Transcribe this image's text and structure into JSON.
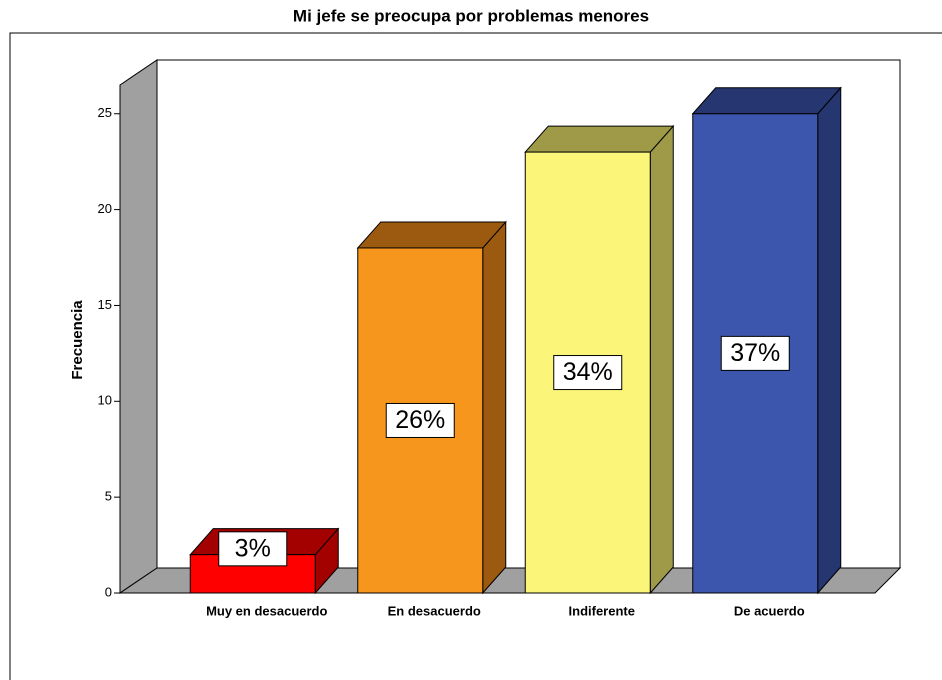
{
  "chart_data": {
    "type": "bar3d",
    "title": "Mi jefe se preocupa por problemas menores",
    "y_label": "Frecuencia",
    "categories": [
      "Muy en desacuerdo",
      "En desacuerdo",
      "Indiferente",
      "De acuerdo"
    ],
    "values": [
      2,
      18,
      23,
      25
    ],
    "data_labels": [
      "3%",
      "26%",
      "34%",
      "37%"
    ],
    "colors": [
      "#ff0000",
      "#f7961d",
      "#fbf57a",
      "#3d56ad"
    ],
    "side_colors": [
      "#a30000",
      "#9c5a10",
      "#9e9a48",
      "#253670"
    ],
    "ylim": [
      0,
      26.5
    ],
    "yticks": [
      0,
      5,
      10,
      15,
      20,
      25
    ]
  }
}
